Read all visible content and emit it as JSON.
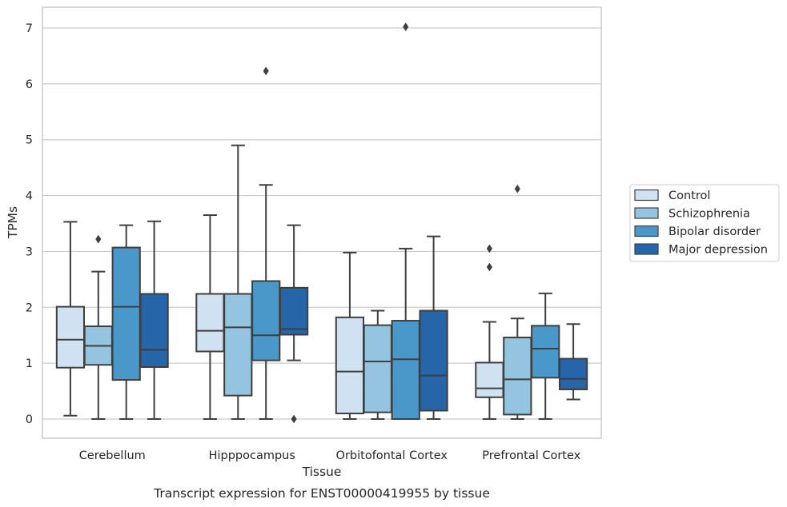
{
  "chart_data": {
    "type": "boxplot",
    "xlabel": "Tissue",
    "ylabel": "TPMs",
    "caption": "Transcript expression for ENST00000419955 by tissue",
    "categories": [
      "Cerebellum",
      "Hipppocampus",
      "Orbitofontal Cortex",
      "Prefrontal Cortex"
    ],
    "ylim": [
      -0.33,
      7.38
    ],
    "yticks": [
      "0",
      "1",
      "2",
      "3",
      "4",
      "5",
      "6",
      "7"
    ],
    "grid": true,
    "legend_position": "right",
    "series": [
      {
        "name": "Control",
        "color": "#d0e1f2",
        "boxes": [
          {
            "whislo": 0.06,
            "q1": 0.92,
            "med": 1.42,
            "q3": 2.01,
            "whishi": 3.53,
            "fliers": []
          },
          {
            "whislo": 0.0,
            "q1": 1.21,
            "med": 1.58,
            "q3": 2.24,
            "whishi": 3.65,
            "fliers": []
          },
          {
            "whislo": 0.0,
            "q1": 0.1,
            "med": 0.85,
            "q3": 1.82,
            "whishi": 2.98,
            "fliers": []
          },
          {
            "whislo": 0.0,
            "q1": 0.39,
            "med": 0.55,
            "q3": 1.01,
            "whishi": 1.74,
            "fliers": [
              2.72,
              3.05
            ]
          }
        ]
      },
      {
        "name": "Schizophrenia",
        "color": "#94c4df",
        "boxes": [
          {
            "whislo": 0.0,
            "q1": 0.97,
            "med": 1.31,
            "q3": 1.66,
            "whishi": 2.64,
            "fliers": [
              3.22
            ]
          },
          {
            "whislo": 0.0,
            "q1": 0.42,
            "med": 1.64,
            "q3": 2.24,
            "whishi": 4.9,
            "fliers": []
          },
          {
            "whislo": 0.0,
            "q1": 0.12,
            "med": 1.03,
            "q3": 1.68,
            "whishi": 1.94,
            "fliers": []
          },
          {
            "whislo": 0.0,
            "q1": 0.08,
            "med": 0.71,
            "q3": 1.46,
            "whishi": 1.8,
            "fliers": [
              4.12
            ]
          }
        ]
      },
      {
        "name": "Bipolar disorder",
        "color": "#4a98c9",
        "boxes": [
          {
            "whislo": 0.0,
            "q1": 0.7,
            "med": 2.01,
            "q3": 3.07,
            "whishi": 3.47,
            "fliers": []
          },
          {
            "whislo": 0.0,
            "q1": 1.05,
            "med": 1.5,
            "q3": 2.47,
            "whishi": 4.19,
            "fliers": [
              6.23
            ]
          },
          {
            "whislo": 0.0,
            "q1": 0.0,
            "med": 1.07,
            "q3": 1.76,
            "whishi": 3.05,
            "fliers": [
              7.02
            ]
          },
          {
            "whislo": 0.0,
            "q1": 0.74,
            "med": 1.26,
            "q3": 1.67,
            "whishi": 2.25,
            "fliers": []
          }
        ]
      },
      {
        "name": "Major depression",
        "color": "#2565a8",
        "boxes": [
          {
            "whislo": 0.0,
            "q1": 0.93,
            "med": 1.24,
            "q3": 2.24,
            "whishi": 3.54,
            "fliers": []
          },
          {
            "whislo": 1.05,
            "q1": 1.51,
            "med": 1.61,
            "q3": 2.35,
            "whishi": 3.47,
            "fliers": [
              0.0
            ]
          },
          {
            "whislo": 0.0,
            "q1": 0.15,
            "med": 0.78,
            "q3": 1.94,
            "whishi": 3.27,
            "fliers": []
          },
          {
            "whislo": 0.35,
            "q1": 0.53,
            "med": 0.72,
            "q3": 1.08,
            "whishi": 1.7,
            "fliers": []
          }
        ]
      }
    ]
  }
}
